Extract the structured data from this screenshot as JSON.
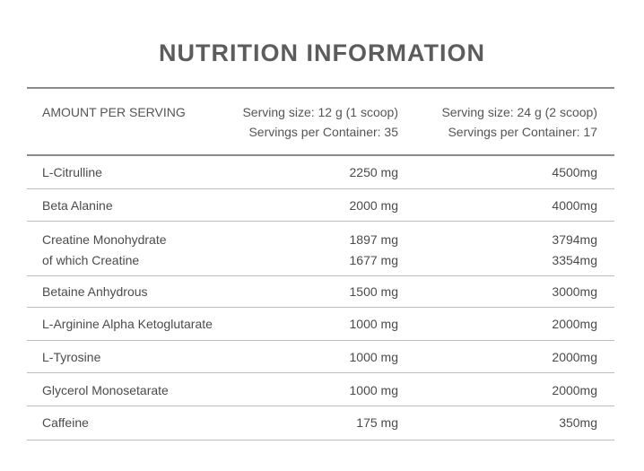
{
  "title": "NUTRITION INFORMATION",
  "header": {
    "col1": "AMOUNT PER SERVING",
    "col2_line1": "Serving size: 12 g (1 scoop)",
    "col2_line2": "Servings per Container: 35",
    "col3_line1": "Serving size: 24 g (2 scoop)",
    "col3_line2": "Servings per Container: 17"
  },
  "rows": [
    {
      "name": "L-Citrulline",
      "v1": "2250 mg",
      "v2": "4500mg"
    },
    {
      "name": "Beta Alanine",
      "v1": "2000 mg",
      "v2": "4000mg"
    },
    {
      "name": "Creatine Monohydrate",
      "v1": "1897 mg",
      "v2": "3794mg",
      "sub_name": "of which Creatine",
      "sub_v1": "1677 mg",
      "sub_v2": "3354mg"
    },
    {
      "name": "Betaine Anhydrous",
      "v1": "1500 mg",
      "v2": "3000mg"
    },
    {
      "name": "L-Arginine Alpha Ketoglutarate",
      "v1": "1000 mg",
      "v2": "2000mg"
    },
    {
      "name": "L-Tyrosine",
      "v1": "1000 mg",
      "v2": "2000mg"
    },
    {
      "name": "Glycerol Monosetarate",
      "v1": "1000 mg",
      "v2": "2000mg"
    },
    {
      "name": "Caffeine",
      "v1": "175 mg",
      "v2": "350mg"
    }
  ]
}
